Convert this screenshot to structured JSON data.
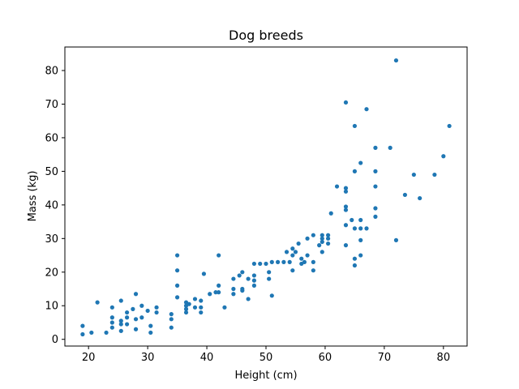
{
  "chart_data": {
    "type": "scatter",
    "title": "Dog breeds",
    "xlabel": "Height (cm)",
    "ylabel": "Mass (kg)",
    "xlim": [
      16,
      84
    ],
    "ylim": [
      -2,
      87
    ],
    "xticks": [
      20,
      30,
      40,
      50,
      60,
      70,
      80
    ],
    "yticks": [
      0,
      10,
      20,
      30,
      40,
      50,
      60,
      70,
      80
    ],
    "grid": false,
    "legend": "none",
    "marker_color": "#1f77b4",
    "points": [
      [
        19,
        4
      ],
      [
        19,
        1.5
      ],
      [
        20.5,
        2
      ],
      [
        21.5,
        11
      ],
      [
        23,
        2
      ],
      [
        24,
        9.5
      ],
      [
        24,
        6.5
      ],
      [
        24,
        5
      ],
      [
        24,
        3.5
      ],
      [
        25.5,
        11.5
      ],
      [
        25.5,
        5.5
      ],
      [
        25.5,
        4.5
      ],
      [
        25.5,
        2.5
      ],
      [
        26.5,
        8
      ],
      [
        26.5,
        6.5
      ],
      [
        26.5,
        4.5
      ],
      [
        27.5,
        9
      ],
      [
        28,
        13.5
      ],
      [
        28,
        6
      ],
      [
        28,
        3
      ],
      [
        29,
        10
      ],
      [
        29,
        6.5
      ],
      [
        30,
        8.5
      ],
      [
        30.5,
        4
      ],
      [
        30.5,
        2
      ],
      [
        31.5,
        9.5
      ],
      [
        31.5,
        8
      ],
      [
        34,
        7.5
      ],
      [
        34,
        6
      ],
      [
        34,
        3.5
      ],
      [
        35,
        25
      ],
      [
        35,
        20.5
      ],
      [
        35,
        16
      ],
      [
        35,
        12.5
      ],
      [
        36.5,
        11
      ],
      [
        36.5,
        10
      ],
      [
        36.5,
        9
      ],
      [
        36.5,
        8
      ],
      [
        37,
        10.5
      ],
      [
        38,
        12
      ],
      [
        38,
        9.5
      ],
      [
        39,
        11.5
      ],
      [
        39,
        9.5
      ],
      [
        39,
        8
      ],
      [
        39.5,
        19.5
      ],
      [
        40.5,
        13.5
      ],
      [
        41.5,
        14
      ],
      [
        42,
        25
      ],
      [
        42,
        16
      ],
      [
        42,
        14
      ],
      [
        43,
        9.5
      ],
      [
        44.5,
        18
      ],
      [
        44.5,
        15
      ],
      [
        44.5,
        13.5
      ],
      [
        45.5,
        19
      ],
      [
        46,
        20
      ],
      [
        46,
        15
      ],
      [
        46,
        14.5
      ],
      [
        47,
        18
      ],
      [
        47,
        12
      ],
      [
        48,
        22.5
      ],
      [
        48,
        19
      ],
      [
        48,
        17.5
      ],
      [
        48,
        16
      ],
      [
        49,
        22.5
      ],
      [
        50,
        22.5
      ],
      [
        50.5,
        20
      ],
      [
        50.5,
        18
      ],
      [
        51,
        23
      ],
      [
        51,
        13
      ],
      [
        52,
        23
      ],
      [
        53,
        23
      ],
      [
        53.5,
        26
      ],
      [
        54,
        23
      ],
      [
        54.5,
        27
      ],
      [
        54.5,
        25
      ],
      [
        54.5,
        20.5
      ],
      [
        55,
        26
      ],
      [
        55.5,
        28.5
      ],
      [
        56,
        24
      ],
      [
        56,
        22.5
      ],
      [
        56.5,
        23
      ],
      [
        57,
        30
      ],
      [
        57,
        25
      ],
      [
        58,
        31
      ],
      [
        58,
        20.5
      ],
      [
        58,
        23
      ],
      [
        59,
        28
      ],
      [
        59.5,
        31
      ],
      [
        59.5,
        30
      ],
      [
        59.5,
        29
      ],
      [
        59.5,
        26
      ],
      [
        60.5,
        31
      ],
      [
        60.5,
        30
      ],
      [
        60.5,
        28.5
      ],
      [
        61,
        37.5
      ],
      [
        62,
        45.5
      ],
      [
        63.5,
        70.5
      ],
      [
        63.5,
        45
      ],
      [
        63.5,
        44
      ],
      [
        63.5,
        39.5
      ],
      [
        63.5,
        38.5
      ],
      [
        63.5,
        34
      ],
      [
        63.5,
        28
      ],
      [
        64.5,
        35.5
      ],
      [
        65,
        63.5
      ],
      [
        65,
        50
      ],
      [
        65,
        24
      ],
      [
        65,
        22
      ],
      [
        65,
        33
      ],
      [
        66,
        52.5
      ],
      [
        66,
        35.5
      ],
      [
        66,
        33
      ],
      [
        66,
        29.5
      ],
      [
        66,
        25
      ],
      [
        67,
        68.5
      ],
      [
        67,
        33
      ],
      [
        68.5,
        57
      ],
      [
        68.5,
        50
      ],
      [
        68.5,
        45.5
      ],
      [
        68.5,
        39
      ],
      [
        68.5,
        36.5
      ],
      [
        71,
        57
      ],
      [
        72,
        83
      ],
      [
        72,
        29.5
      ],
      [
        73.5,
        43
      ],
      [
        75,
        49
      ],
      [
        76,
        42
      ],
      [
        78.5,
        49
      ],
      [
        80,
        54.5
      ],
      [
        81,
        63.5
      ]
    ]
  }
}
